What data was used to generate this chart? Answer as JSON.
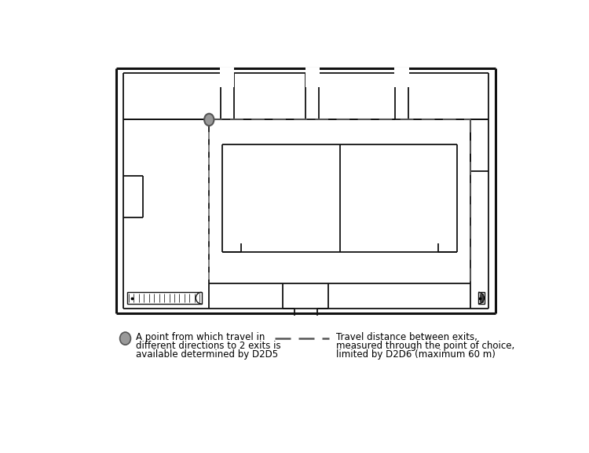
{
  "fig_width": 7.5,
  "fig_height": 5.77,
  "dpi": 100,
  "bg_color": "#ffffff",
  "wall_color": "#111111",
  "dash_color": "#555555",
  "point_fill": "#999999",
  "point_edge": "#555555",
  "legend_text1": [
    "A point from which travel in",
    "different directions to 2 exits is",
    "available determined by D2D5"
  ],
  "legend_text2": [
    "Travel distance between exits,",
    "measured through the point of choice,",
    "limited by D2D6 (maximum 60 m)"
  ]
}
